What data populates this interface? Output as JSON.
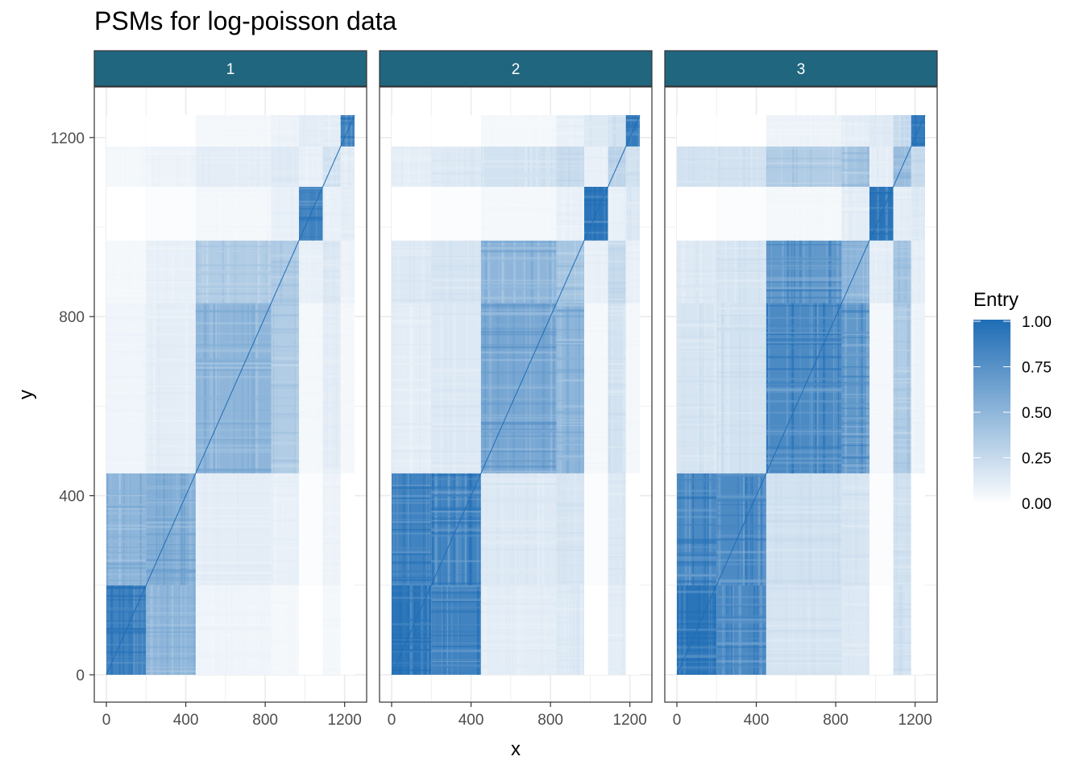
{
  "chart_data": {
    "type": "heatmap",
    "title": "PSMs for log-poisson data",
    "xlabel": "x",
    "ylabel": "y",
    "facets": [
      "1",
      "2",
      "3"
    ],
    "x_ticks": [
      0,
      400,
      800,
      1200
    ],
    "y_ticks": [
      0,
      400,
      800,
      1200
    ],
    "xlim": [
      0,
      1250
    ],
    "ylim": [
      0,
      1250
    ],
    "legend": {
      "title": "Entry",
      "ticks": [
        "0.00",
        "0.25",
        "0.50",
        "0.75",
        "1.00"
      ],
      "position": "right",
      "low_color": "#ffffff",
      "high_color": "#1f6db5"
    },
    "cluster_boundaries": [
      0,
      200,
      450,
      830,
      970,
      1090,
      1180,
      1250
    ],
    "block_intensity": [
      [
        [
          0.85,
          0.5,
          0.07,
          0.05,
          0.0,
          0.05,
          0.0
        ],
        [
          0.5,
          0.55,
          0.12,
          0.1,
          0.02,
          0.08,
          0.0
        ],
        [
          0.07,
          0.12,
          0.5,
          0.35,
          0.05,
          0.12,
          0.05
        ],
        [
          0.05,
          0.1,
          0.35,
          0.35,
          0.1,
          0.15,
          0.08
        ],
        [
          0.0,
          0.02,
          0.05,
          0.1,
          0.85,
          0.1,
          0.12
        ],
        [
          0.05,
          0.08,
          0.12,
          0.15,
          0.1,
          0.2,
          0.12
        ],
        [
          0.0,
          0.0,
          0.05,
          0.08,
          0.12,
          0.12,
          0.85
        ]
      ],
      [
        [
          0.95,
          0.85,
          0.12,
          0.15,
          0.0,
          0.12,
          0.0
        ],
        [
          0.85,
          0.85,
          0.15,
          0.18,
          0.02,
          0.15,
          0.0
        ],
        [
          0.12,
          0.15,
          0.6,
          0.5,
          0.05,
          0.2,
          0.05
        ],
        [
          0.15,
          0.18,
          0.5,
          0.4,
          0.1,
          0.25,
          0.1
        ],
        [
          0.0,
          0.02,
          0.05,
          0.1,
          0.95,
          0.1,
          0.15
        ],
        [
          0.12,
          0.15,
          0.2,
          0.25,
          0.1,
          0.3,
          0.2
        ],
        [
          0.0,
          0.0,
          0.05,
          0.1,
          0.15,
          0.2,
          0.9
        ]
      ],
      [
        [
          0.95,
          0.8,
          0.18,
          0.15,
          0.0,
          0.2,
          0.0
        ],
        [
          0.8,
          0.8,
          0.2,
          0.18,
          0.02,
          0.2,
          0.0
        ],
        [
          0.18,
          0.2,
          0.8,
          0.7,
          0.05,
          0.35,
          0.08
        ],
        [
          0.15,
          0.18,
          0.7,
          0.5,
          0.12,
          0.4,
          0.12
        ],
        [
          0.0,
          0.02,
          0.05,
          0.12,
          0.95,
          0.12,
          0.15
        ],
        [
          0.2,
          0.2,
          0.35,
          0.4,
          0.12,
          0.45,
          0.25
        ],
        [
          0.0,
          0.0,
          0.08,
          0.12,
          0.15,
          0.25,
          0.9
        ]
      ]
    ]
  }
}
